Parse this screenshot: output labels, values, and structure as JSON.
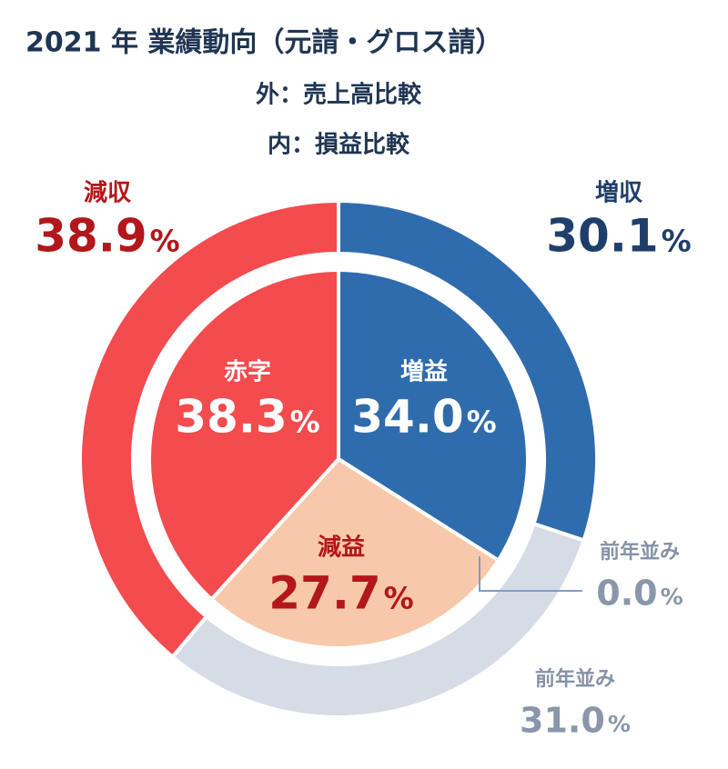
{
  "chart_data": [
    {
      "type": "donut",
      "title": "2021 年  業績動向（元請・グロス請）",
      "subtitle": "外：売上高比較",
      "categories": [
        "増収",
        "前年並み",
        "減収"
      ],
      "values": [
        30.1,
        31.0,
        38.9
      ],
      "value_labels": [
        "30.1",
        "31.0",
        "38.9"
      ],
      "unit": "%",
      "colors": [
        "#2f6cae",
        "#d6dce6",
        "#f34b4e"
      ]
    },
    {
      "type": "pie",
      "subtitle": "内：損益比較",
      "categories": [
        "増益",
        "前年並み",
        "減益",
        "赤字"
      ],
      "values": [
        34.0,
        0.0,
        27.7,
        38.3
      ],
      "value_labels": [
        "34.0",
        "0.0",
        "27.7",
        "38.3"
      ],
      "unit": "%",
      "colors": [
        "#2f6cae",
        "#d6dce6",
        "#f7c9aa",
        "#f34b4e"
      ]
    }
  ]
}
